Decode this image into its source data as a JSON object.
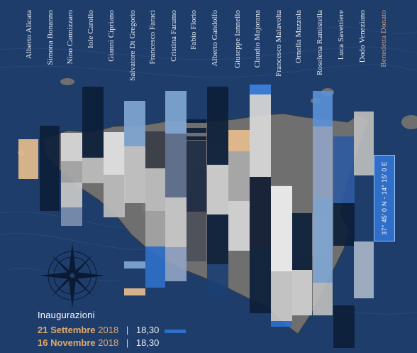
{
  "artists": [
    "Alberto Alicata",
    "Simona Bonanno",
    "Nino Cannizzaro",
    "Iole Carollo",
    "Gianni Cipriano",
    "Salvatore Di Gregorio",
    "Francesco Faraci",
    "Cristina Faramo",
    "Fabio Florio",
    "Alberto Gandolfo",
    "Giuseppe Iannello",
    "Claudio Majorana",
    "Francesco Malavolta",
    "Ornella Mazzola",
    "Roselena Ramistella",
    "Luca Savettiere",
    "Dodo Veneziano",
    "Benedetta Donato"
  ],
  "coordinates": "37° 45' 0 N - 14° 15' 0 E",
  "events": {
    "title": "Inaugurazioni",
    "items": [
      {
        "date": "21 Settembre",
        "year": "2018",
        "time": "18,30"
      },
      {
        "date": "16 Novembre",
        "year": "2018",
        "time": "18,30"
      }
    ]
  },
  "colors": {
    "background": "#1e3d6b",
    "accent_orange": "#e0a96b",
    "accent_blue": "#2f6fc9",
    "muted_name": "#c9a27e"
  },
  "icons": [
    "compass-rose-icon"
  ]
}
